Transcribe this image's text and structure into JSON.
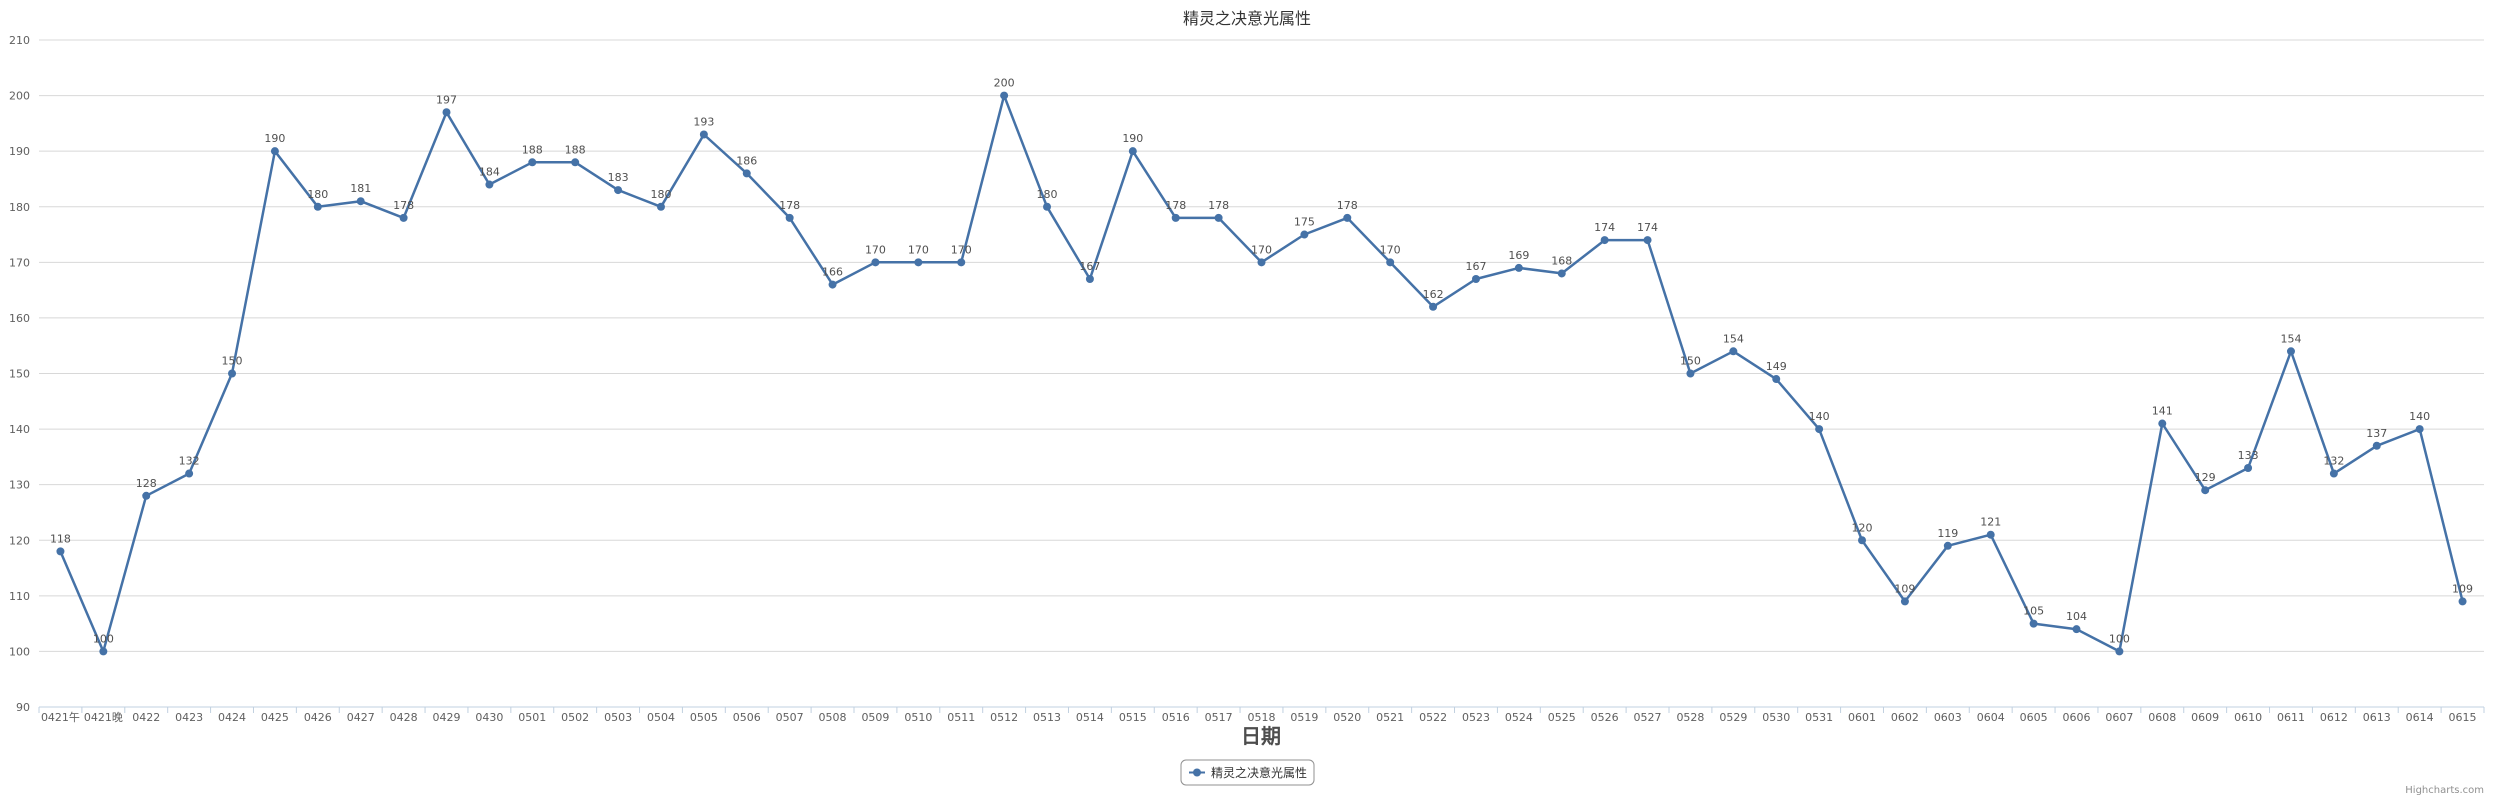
{
  "chart_data": {
    "type": "line",
    "title": "精灵之决意光属性",
    "xlabel": "日期",
    "ylabel": "",
    "ylim": [
      90,
      210
    ],
    "yticks": [
      90,
      100,
      110,
      120,
      130,
      140,
      150,
      160,
      170,
      180,
      190,
      200,
      210
    ],
    "grid": true,
    "legend_position": "bottom-center",
    "colors": {
      "series": "#4572a7",
      "grid": "#d8d8d8",
      "axis": "#c0d0e0"
    },
    "categories": [
      "0421午",
      "0421晚",
      "0422",
      "0423",
      "0424",
      "0425",
      "0426",
      "0427",
      "0428",
      "0429",
      "0430",
      "0501",
      "0502",
      "0503",
      "0504",
      "0505",
      "0506",
      "0507",
      "0508",
      "0509",
      "0510",
      "0511",
      "0512",
      "0513",
      "0514",
      "0515",
      "0516",
      "0517",
      "0518",
      "0519",
      "0520",
      "0521",
      "0522",
      "0523",
      "0524",
      "0525",
      "0526",
      "0527",
      "0528",
      "0529",
      "0530",
      "0531",
      "0601",
      "0602",
      "0603",
      "0604",
      "0605",
      "0606",
      "0607",
      "0608",
      "0609",
      "0610",
      "0611",
      "0612",
      "0613",
      "0614",
      "0615"
    ],
    "series": [
      {
        "name": "精灵之决意光属性",
        "values": [
          118,
          100,
          128,
          132,
          150,
          190,
          180,
          181,
          178,
          197,
          184,
          188,
          188,
          183,
          180,
          193,
          186,
          178,
          166,
          170,
          170,
          170,
          200,
          180,
          167,
          190,
          178,
          178,
          170,
          175,
          178,
          170,
          162,
          167,
          169,
          168,
          174,
          174,
          150,
          154,
          149,
          140,
          120,
          109,
          119,
          121,
          105,
          104,
          100,
          141,
          129,
          133,
          154,
          132,
          137,
          140,
          109
        ]
      }
    ]
  },
  "credit": "Highcharts.com"
}
